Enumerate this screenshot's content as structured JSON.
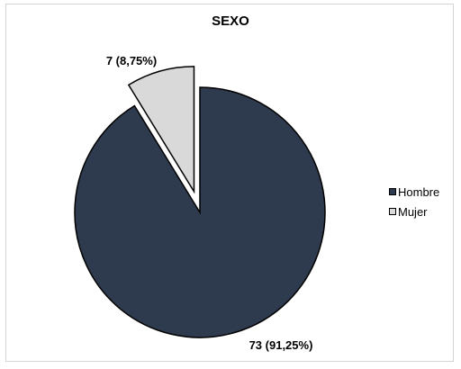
{
  "chart_data": {
    "type": "pie",
    "title": "SEXO",
    "categories": [
      "Hombre",
      "Mujer"
    ],
    "values": [
      73,
      7
    ],
    "percentages": [
      91.25,
      8.75
    ],
    "data_labels": [
      "73 (91,25%)",
      "7 (8,75%)"
    ],
    "exploded": [
      false,
      true
    ],
    "colors": [
      "#2e3a4e",
      "#d9d9d9"
    ],
    "slice_stroke": "#000000",
    "legend_position": "right"
  }
}
